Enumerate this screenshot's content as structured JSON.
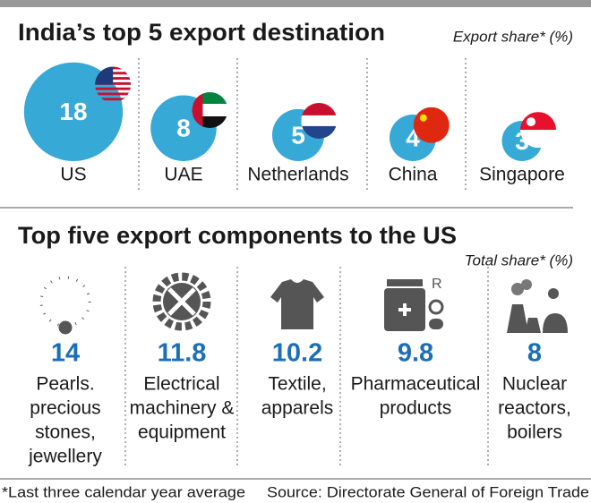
{
  "chart_data": [
    {
      "type": "bubble",
      "title": "India’s top 5 export destination",
      "subtitle": "Export share* (%)",
      "categories": [
        "US",
        "UAE",
        "Netherlands",
        "China",
        "Singapore"
      ],
      "values": [
        18,
        8,
        5,
        4,
        3
      ],
      "color": "#36a9d6"
    },
    {
      "type": "pictogram",
      "title": "Top five export components to the US",
      "subtitle": "Total share* (%)",
      "categories": [
        [
          "Pearls.",
          "precious",
          "stones,",
          "jewellery"
        ],
        [
          "Electrical",
          "machinery &",
          "equipment"
        ],
        [
          "Textile,",
          "apparels"
        ],
        [
          "Pharmaceutical",
          "products"
        ],
        [
          "Nuclear",
          "reactors,",
          "boilers"
        ]
      ],
      "values": [
        14,
        11.8,
        10.2,
        9.8,
        8
      ],
      "color": "#1c6fb7"
    }
  ],
  "footnote": "*Last three calendar year average",
  "source": "Source: Directorate General of Foreign Trade"
}
